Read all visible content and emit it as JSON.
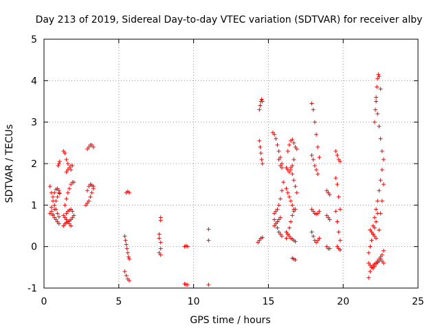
{
  "chart_data": {
    "type": "scatter",
    "title": "Day 213 of 2019, Sidereal Day-to-day VTEC variation (SDTVAR) for receiver alby",
    "xlabel": "GPS time / hours",
    "ylabel": "SDTVAR / TECUs",
    "xlim": [
      0,
      25
    ],
    "ylim": [
      -1,
      5
    ],
    "xticks": [
      0,
      5,
      10,
      15,
      20,
      25
    ],
    "yticks": [
      -1,
      0,
      1,
      2,
      3,
      4,
      5
    ],
    "grid": true,
    "marker": "+",
    "color": "#ff0000",
    "series": [
      {
        "name": "SDTVAR",
        "tracks": [
          {
            "x": [
              0.4,
              0.5,
              0.6,
              0.7,
              0.8,
              0.9,
              1.0
            ],
            "y": [
              1.45,
              1.3,
              1.1,
              1.0,
              0.9,
              0.8,
              0.72
            ]
          },
          {
            "x": [
              0.4,
              0.5,
              0.6,
              0.7,
              0.8,
              0.9,
              1.0
            ],
            "y": [
              0.8,
              0.95,
              1.2,
              1.3,
              1.38,
              1.4,
              1.35
            ]
          },
          {
            "x": [
              0.5,
              0.6,
              0.7,
              0.8,
              0.9,
              1.0
            ],
            "y": [
              0.85,
              0.78,
              0.7,
              0.65,
              0.6,
              0.55
            ]
          },
          {
            "x": [
              0.6,
              0.7,
              0.8,
              0.9,
              1.0,
              1.05
            ],
            "y": [
              0.75,
              0.9,
              1.1,
              1.2,
              1.3,
              1.28
            ]
          },
          {
            "x": [
              0.95,
              1.0,
              1.05
            ],
            "y": [
              1.95,
              2.0,
              2.05
            ]
          },
          {
            "x": [
              1.3,
              1.4,
              1.5,
              1.6,
              1.7,
              1.8
            ],
            "y": [
              2.3,
              2.25,
              2.1,
              2.0,
              1.9,
              1.85
            ]
          },
          {
            "x": [
              1.5,
              1.6,
              1.7,
              1.8,
              1.9
            ],
            "y": [
              1.8,
              1.85,
              1.9,
              1.95,
              1.95
            ]
          },
          {
            "x": [
              1.4,
              1.5,
              1.6,
              1.7,
              1.8,
              1.9,
              2.0
            ],
            "y": [
              1.0,
              1.15,
              1.3,
              1.4,
              1.5,
              1.55,
              1.55
            ]
          },
          {
            "x": [
              1.3,
              1.4,
              1.5,
              1.6,
              1.7,
              1.8,
              1.9,
              2.0
            ],
            "y": [
              0.5,
              0.55,
              0.58,
              0.6,
              0.62,
              0.65,
              0.7,
              0.75
            ]
          },
          {
            "x": [
              1.3,
              1.4,
              1.5,
              1.6,
              1.7,
              1.8
            ],
            "y": [
              0.75,
              0.7,
              0.65,
              0.6,
              0.55,
              0.5
            ]
          },
          {
            "x": [
              1.5,
              1.6,
              1.7,
              1.8,
              1.9
            ],
            "y": [
              0.8,
              0.85,
              0.88,
              0.9,
              0.85
            ]
          },
          {
            "x": [
              2.9,
              3.0,
              3.1,
              3.2,
              3.3
            ],
            "y": [
              2.35,
              2.4,
              2.45,
              2.45,
              2.4
            ]
          },
          {
            "x": [
              2.8,
              2.9,
              3.0,
              3.1,
              3.2,
              3.3
            ],
            "y": [
              1.0,
              1.05,
              1.1,
              1.2,
              1.3,
              1.4
            ]
          },
          {
            "x": [
              2.9,
              3.0,
              3.1,
              3.2,
              3.3
            ],
            "y": [
              1.35,
              1.45,
              1.5,
              1.48,
              1.45
            ]
          },
          {
            "x": [
              5.5,
              5.6,
              5.7
            ],
            "y": [
              1.3,
              1.33,
              1.3
            ]
          },
          {
            "x": [
              5.4,
              5.45,
              5.5,
              5.55,
              5.6,
              5.65,
              5.7
            ],
            "y": [
              0.25,
              0.15,
              0.05,
              -0.05,
              -0.15,
              -0.25,
              -0.3
            ]
          },
          {
            "x": [
              5.4,
              5.5,
              5.6,
              5.7
            ],
            "y": [
              -0.6,
              -0.7,
              -0.78,
              -0.82
            ]
          },
          {
            "x": [
              7.8,
              7.8
            ],
            "y": [
              0.7,
              0.63
            ]
          },
          {
            "x": [
              7.7,
              7.7,
              7.8,
              7.8
            ],
            "y": [
              0.3,
              0.2,
              0.1,
              -0.05
            ]
          },
          {
            "x": [
              7.7,
              7.8
            ],
            "y": [
              -0.15,
              -0.2
            ]
          },
          {
            "x": [
              9.4,
              9.5,
              9.6
            ],
            "y": [
              0.0,
              0.02,
              0.0
            ]
          },
          {
            "x": [
              9.4,
              9.5,
              9.6
            ],
            "y": [
              -0.9,
              -0.92,
              -0.92
            ]
          },
          {
            "x": [
              11.0,
              11.0,
              11.0
            ],
            "y": [
              0.42,
              0.15,
              -0.92
            ]
          },
          {
            "x": [
              14.4,
              14.45,
              14.5,
              14.55,
              14.6
            ],
            "y": [
              3.3,
              3.4,
              3.5,
              3.55,
              3.5
            ]
          },
          {
            "x": [
              14.4,
              14.45,
              14.5,
              14.55,
              14.6
            ],
            "y": [
              2.55,
              2.4,
              2.25,
              2.1,
              2.0
            ]
          },
          {
            "x": [
              14.3,
              14.4,
              14.5,
              14.6
            ],
            "y": [
              0.1,
              0.15,
              0.2,
              0.22
            ]
          },
          {
            "x": [
              15.3,
              15.4,
              15.5,
              15.6,
              15.7,
              15.8,
              15.9
            ],
            "y": [
              2.75,
              2.7,
              2.6,
              2.45,
              2.3,
              2.15,
              2.0
            ]
          },
          {
            "x": [
              15.7,
              15.8,
              15.9
            ],
            "y": [
              2.1,
              1.95,
              1.9
            ]
          },
          {
            "x": [
              15.4,
              15.5,
              15.6,
              15.7,
              15.8,
              15.9,
              16.0
            ],
            "y": [
              0.8,
              0.85,
              0.9,
              1.0,
              1.15,
              1.35,
              1.55
            ]
          },
          {
            "x": [
              15.4,
              15.5,
              15.6,
              15.7,
              15.8,
              15.9
            ],
            "y": [
              0.65,
              0.55,
              0.45,
              0.35,
              0.3,
              0.25
            ]
          },
          {
            "x": [
              15.4,
              15.5,
              15.6,
              15.7,
              15.8
            ],
            "y": [
              0.5,
              0.55,
              0.6,
              0.65,
              0.7
            ]
          },
          {
            "x": [
              16.2,
              16.3,
              16.4,
              16.5,
              16.6,
              16.7
            ],
            "y": [
              1.9,
              1.85,
              1.8,
              1.85,
              1.95,
              2.1
            ]
          },
          {
            "x": [
              16.3,
              16.4,
              16.5,
              16.6,
              16.7,
              16.8,
              16.9
            ],
            "y": [
              2.3,
              2.45,
              2.55,
              2.58,
              2.5,
              2.4,
              2.35
            ]
          },
          {
            "x": [
              16.2,
              16.3,
              16.4,
              16.5,
              16.6,
              16.7
            ],
            "y": [
              1.4,
              1.3,
              1.2,
              1.1,
              1.0,
              0.9
            ]
          },
          {
            "x": [
              16.5,
              16.6,
              16.7,
              16.8,
              16.9
            ],
            "y": [
              1.9,
              1.75,
              1.6,
              1.45,
              1.3
            ]
          },
          {
            "x": [
              16.2,
              16.3,
              16.4,
              16.5,
              16.6,
              16.7,
              16.8
            ],
            "y": [
              0.2,
              0.3,
              0.45,
              0.6,
              0.75,
              0.85,
              0.9
            ]
          },
          {
            "x": [
              16.2,
              16.3,
              16.4,
              16.5,
              16.6,
              16.7,
              16.8
            ],
            "y": [
              0.35,
              0.3,
              0.25,
              0.2,
              0.18,
              0.15,
              0.12
            ]
          },
          {
            "x": [
              16.6,
              16.7,
              16.8
            ],
            "y": [
              -0.28,
              -0.3,
              -0.32
            ]
          },
          {
            "x": [
              17.9,
              18.0,
              18.1,
              18.2,
              18.3,
              18.4
            ],
            "y": [
              3.45,
              3.3,
              3.0,
              2.7,
              2.4,
              2.15
            ]
          },
          {
            "x": [
              17.9,
              18.0,
              18.1,
              18.2,
              18.3
            ],
            "y": [
              2.2,
              2.1,
              1.95,
              1.85,
              1.75
            ]
          },
          {
            "x": [
              17.9,
              18.0,
              18.1,
              18.2,
              18.3,
              18.4
            ],
            "y": [
              0.9,
              0.85,
              0.8,
              0.78,
              0.8,
              0.85
            ]
          },
          {
            "x": [
              17.9,
              18.0,
              18.1,
              18.2,
              18.3,
              18.4
            ],
            "y": [
              0.35,
              0.25,
              0.15,
              0.1,
              0.15,
              0.2
            ]
          },
          {
            "x": [
              18.9,
              19.0,
              19.1
            ],
            "y": [
              1.35,
              1.3,
              1.25
            ]
          },
          {
            "x": [
              18.9,
              19.0,
              19.1
            ],
            "y": [
              0.75,
              0.7,
              0.65
            ]
          },
          {
            "x": [
              18.9,
              19.0,
              19.1
            ],
            "y": [
              0.0,
              -0.05,
              -0.05
            ]
          },
          {
            "x": [
              19.5,
              19.6,
              19.7,
              19.8
            ],
            "y": [
              2.3,
              2.2,
              2.1,
              2.05
            ]
          },
          {
            "x": [
              19.5,
              19.6,
              19.7,
              19.8
            ],
            "y": [
              1.65,
              1.5,
              1.2,
              0.9
            ]
          },
          {
            "x": [
              19.5,
              19.6,
              19.7,
              19.8
            ],
            "y": [
              0.85,
              0.6,
              0.35,
              0.15
            ]
          },
          {
            "x": [
              19.6,
              19.7,
              19.8
            ],
            "y": [
              0.0,
              -0.05,
              -0.08
            ]
          },
          {
            "x": [
              21.7,
              21.8,
              21.9,
              22.0,
              22.1,
              22.2,
              22.3,
              22.4,
              22.5,
              22.6,
              22.7
            ],
            "y": [
              -0.75,
              -0.6,
              -0.5,
              -0.45,
              -0.42,
              -0.4,
              -0.35,
              -0.3,
              -0.25,
              -0.2,
              -0.1
            ]
          },
          {
            "x": [
              21.7,
              21.8,
              21.9,
              22.0,
              22.1,
              22.2,
              22.3,
              22.4,
              22.5
            ],
            "y": [
              -0.4,
              -0.45,
              -0.5,
              -0.52,
              -0.48,
              -0.42,
              -0.38,
              -0.35,
              -0.3
            ]
          },
          {
            "x": [
              21.7,
              21.8,
              21.9,
              22.0,
              22.1,
              22.2,
              22.3
            ],
            "y": [
              -0.15,
              0.0,
              0.15,
              0.3,
              0.45,
              0.6,
              0.8
            ]
          },
          {
            "x": [
              21.8,
              21.9,
              22.0,
              22.1,
              22.2
            ],
            "y": [
              0.4,
              0.35,
              0.3,
              0.25,
              0.2
            ]
          },
          {
            "x": [
              22.0,
              22.1,
              22.2,
              22.3,
              22.4,
              22.5,
              22.6,
              22.7
            ],
            "y": [
              0.5,
              0.7,
              0.9,
              1.1,
              1.35,
              1.6,
              1.85,
              2.1
            ]
          },
          {
            "x": [
              22.1,
              22.15,
              22.2,
              22.25,
              22.3,
              22.35,
              22.4,
              22.5
            ],
            "y": [
              3.0,
              3.3,
              3.6,
              3.85,
              4.05,
              4.15,
              4.1,
              3.8
            ]
          },
          {
            "x": [
              22.2,
              22.3,
              22.4,
              22.5,
              22.6
            ],
            "y": [
              3.5,
              3.2,
              2.9,
              2.6,
              2.3
            ]
          },
          {
            "x": [
              22.4,
              22.5,
              22.6,
              22.7
            ],
            "y": [
              0.4,
              0.8,
              1.1,
              1.5
            ]
          },
          {
            "x": [
              22.6,
              22.7
            ],
            "y": [
              -0.35,
              -0.4
            ]
          }
        ]
      }
    ]
  }
}
